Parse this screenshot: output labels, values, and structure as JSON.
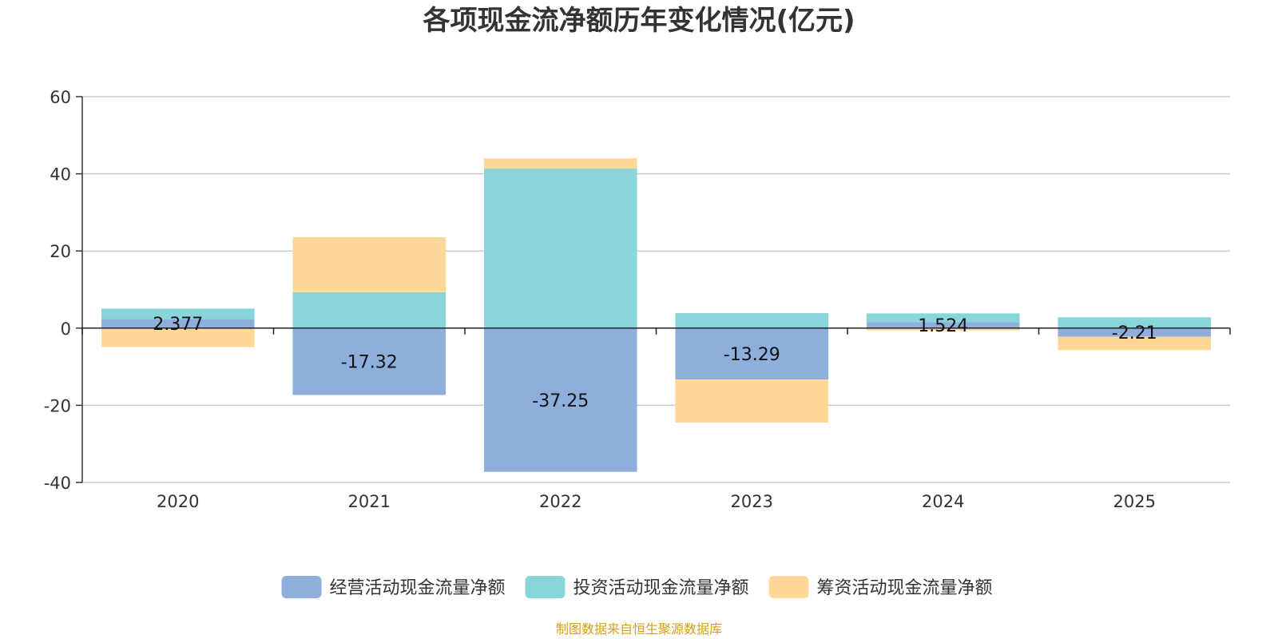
{
  "chart_data": {
    "type": "bar",
    "stacked": true,
    "title": "各项现金流净额历年变化情况(亿元)",
    "categories": [
      "2020",
      "2021",
      "2022",
      "2023",
      "2024",
      "2025"
    ],
    "series": [
      {
        "name": "经营活动现金流量净额",
        "color": "#8eaedb",
        "values": [
          2.377,
          -17.32,
          -37.25,
          -13.29,
          1.524,
          -2.21
        ]
      },
      {
        "name": "投资活动现金流量净额",
        "color": "#88d6d9",
        "values": [
          2.7,
          9.3,
          41.4,
          3.9,
          2.3,
          2.8
        ]
      },
      {
        "name": "筹资活动现金流量净额",
        "color": "#ffd899",
        "values": [
          -4.9,
          14.3,
          2.6,
          -11.2,
          -0.6,
          -3.5
        ]
      }
    ],
    "data_labels": [
      "2.377",
      "-17.32",
      "-37.25",
      "-13.29",
      "1.524",
      "-2.21"
    ],
    "yticks": [
      60,
      40,
      20,
      0,
      -20,
      -40
    ],
    "ylim": [
      -40,
      60
    ],
    "grid": true,
    "legend_position": "bottom",
    "source_text": "制图数据来自恒生聚源数据库"
  }
}
